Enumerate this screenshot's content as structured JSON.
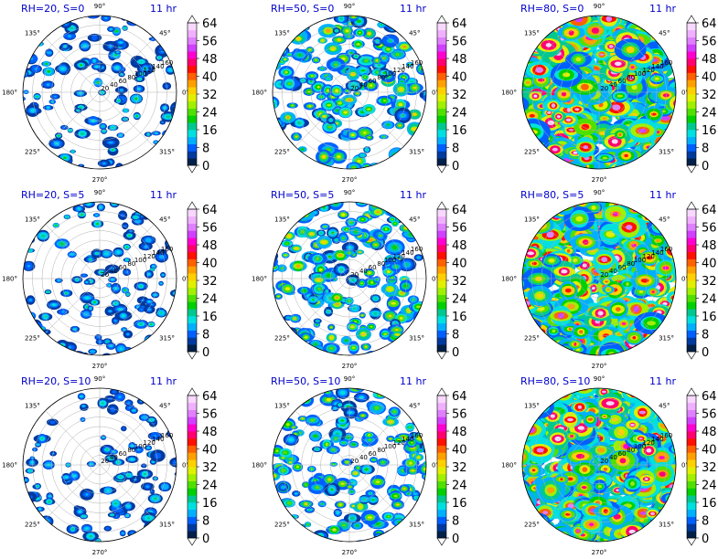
{
  "figure": {
    "time_label": "11 hr",
    "colors": {
      "title": "#0000cc",
      "time": "#0000cc",
      "grid": "#b0b0b0",
      "frame": "#000000"
    }
  },
  "colorbar": {
    "ticks": [
      "0",
      "8",
      "16",
      "24",
      "32",
      "40",
      "48",
      "56",
      "64"
    ],
    "colors": [
      "#00204a",
      "#003a9e",
      "#0060ff",
      "#00b0ff",
      "#00e0e0",
      "#00c890",
      "#00d000",
      "#50e000",
      "#a0f000",
      "#e0f000",
      "#ffd000",
      "#ffa000",
      "#ff6000",
      "#ff1000",
      "#ff0070",
      "#ff00d0",
      "#d040ff",
      "#e080ff",
      "#f0b0ff",
      "#f8d8ff"
    ]
  },
  "chart_data": [
    {
      "type": "polar-heatmap",
      "title": "RH=20, S=0",
      "rh": 20,
      "s": 0,
      "coverage": 0.18,
      "intensity": 0.25,
      "angle_labels": [
        "90°",
        "45°",
        "0°",
        "315°",
        "270°",
        "225°",
        "180°",
        "135°"
      ],
      "radial_labels": [
        "20",
        "40",
        "60",
        "80",
        "100",
        "120",
        "140",
        "160"
      ],
      "rlim": [
        0,
        160
      ]
    },
    {
      "type": "polar-heatmap",
      "title": "RH=50, S=0",
      "rh": 50,
      "s": 0,
      "coverage": 0.3,
      "intensity": 0.45,
      "angle_labels": [
        "90°",
        "45°",
        "0°",
        "315°",
        "270°",
        "225°",
        "180°",
        "135°"
      ],
      "radial_labels": [
        "20",
        "40",
        "60",
        "80",
        "100",
        "120",
        "140",
        "160"
      ],
      "rlim": [
        0,
        160
      ]
    },
    {
      "type": "polar-heatmap",
      "title": "RH=80, S=0",
      "rh": 80,
      "s": 0,
      "coverage": 0.82,
      "intensity": 0.8,
      "angle_labels": [
        "90°",
        "45°",
        "0°",
        "315°",
        "270°",
        "225°",
        "180°",
        "135°"
      ],
      "radial_labels": [
        "20",
        "40",
        "60",
        "80",
        "100",
        "120",
        "140",
        "160"
      ],
      "rlim": [
        0,
        160
      ]
    },
    {
      "type": "polar-heatmap",
      "title": "RH=20, S=5",
      "rh": 20,
      "s": 5,
      "coverage": 0.18,
      "intensity": 0.25,
      "angle_labels": [
        "90°",
        "45°",
        "0°",
        "315°",
        "270°",
        "225°",
        "180°",
        "135°"
      ],
      "radial_labels": [
        "20",
        "40",
        "60",
        "80",
        "100",
        "120",
        "140",
        "160"
      ],
      "rlim": [
        0,
        160
      ]
    },
    {
      "type": "polar-heatmap",
      "title": "RH=50, S=5",
      "rh": 50,
      "s": 5,
      "coverage": 0.3,
      "intensity": 0.45,
      "angle_labels": [
        "90°",
        "45°",
        "0°",
        "315°",
        "270°",
        "225°",
        "180°",
        "135°"
      ],
      "radial_labels": [
        "20",
        "40",
        "60",
        "80",
        "100",
        "120",
        "140",
        "160"
      ],
      "rlim": [
        0,
        160
      ]
    },
    {
      "type": "polar-heatmap",
      "title": "RH=80, S=5",
      "rh": 80,
      "s": 5,
      "coverage": 0.85,
      "intensity": 0.8,
      "angle_labels": [
        "90°",
        "45°",
        "0°",
        "315°",
        "270°",
        "225°",
        "180°",
        "135°"
      ],
      "radial_labels": [
        "20",
        "40",
        "60",
        "80",
        "100",
        "120",
        "140",
        "160"
      ],
      "rlim": [
        0,
        160
      ]
    },
    {
      "type": "polar-heatmap",
      "title": "RH=20, S=10",
      "rh": 20,
      "s": 10,
      "coverage": 0.16,
      "intensity": 0.22,
      "angle_labels": [
        "90°",
        "45°",
        "0°",
        "315°",
        "270°",
        "225°",
        "180°",
        "135°"
      ],
      "radial_labels": [
        "20",
        "40",
        "60",
        "80",
        "100",
        "120",
        "140",
        "160"
      ],
      "rlim": [
        0,
        160
      ]
    },
    {
      "type": "polar-heatmap",
      "title": "RH=50, S=10",
      "rh": 50,
      "s": 10,
      "coverage": 0.28,
      "intensity": 0.42,
      "angle_labels": [
        "90°",
        "45°",
        "0°",
        "315°",
        "270°",
        "225°",
        "180°",
        "135°"
      ],
      "radial_labels": [
        "20",
        "40",
        "60",
        "80",
        "100",
        "120",
        "140",
        "160"
      ],
      "rlim": [
        0,
        160
      ]
    },
    {
      "type": "polar-heatmap",
      "title": "RH=80, S=10",
      "rh": 80,
      "s": 10,
      "coverage": 0.82,
      "intensity": 0.78,
      "angle_labels": [
        "90°",
        "45°",
        "0°",
        "315°",
        "270°",
        "225°",
        "180°",
        "135°"
      ],
      "radial_labels": [
        "20",
        "40",
        "60",
        "80",
        "100",
        "120",
        "140",
        "160"
      ],
      "rlim": [
        0,
        160
      ]
    }
  ]
}
